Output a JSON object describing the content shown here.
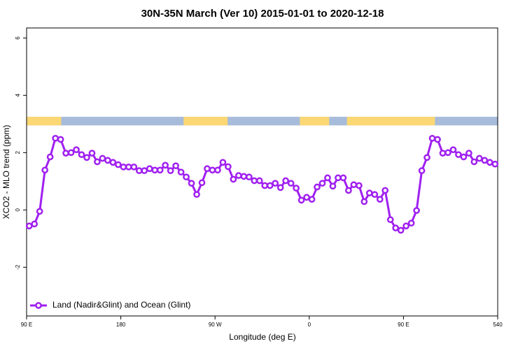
{
  "chart_data": {
    "type": "line",
    "title": "30N-35N March (Ver 10)   2015-01-01 to 2020-12-18",
    "x_label": "Longitude (deg E)",
    "y_label": "XCO2 - MLO trend (ppm)",
    "xlim": [
      90,
      540
    ],
    "ylim": [
      -3.7,
      6.35
    ],
    "xticks": [
      {
        "value": 90,
        "label": "90 E"
      },
      180,
      {
        "value": 270,
        "label": "90 W"
      },
      {
        "value": 360,
        "label": "0"
      },
      {
        "value": 450,
        "label": "90 E"
      },
      540
    ],
    "yticks": [
      -2,
      0,
      2,
      4,
      6
    ],
    "legend": "bottom-left",
    "land_mask": {
      "ylim": [
        2.95,
        3.25
      ],
      "land_color": "#fcd874",
      "ocean_color": "#a7bcda",
      "land": [
        [
          90,
          123
        ],
        [
          240,
          282
        ],
        [
          351,
          379
        ],
        [
          396,
          480
        ]
      ]
    },
    "x": [
      92.5,
      97.5,
      102.5,
      107.5,
      112.5,
      117.5,
      122.5,
      127.5,
      132.5,
      137.5,
      142.5,
      147.5,
      152.5,
      157.5,
      162.5,
      167.5,
      172.5,
      177.5,
      182.5,
      187.5,
      192.5,
      197.5,
      202.5,
      207.5,
      212.5,
      217.5,
      222.5,
      227.5,
      232.5,
      237.5,
      242.5,
      247.5,
      252.5,
      257.5,
      262.5,
      267.5,
      272.5,
      277.5,
      282.5,
      287.5,
      292.5,
      297.5,
      302.5,
      307.5,
      312.5,
      317.5,
      322.5,
      327.5,
      332.5,
      337.5,
      342.5,
      347.5,
      352.5,
      357.5,
      362.5,
      367.5,
      372.5,
      377.5,
      382.5,
      387.5,
      392.5,
      397.5,
      402.5,
      407.5,
      412.5,
      417.5,
      422.5,
      427.5,
      432.5,
      437.5,
      442.5,
      447.5,
      452.5,
      457.5,
      462.5,
      467.5,
      472.5,
      477.5,
      482.5,
      487.5,
      492.5,
      497.5,
      502.5,
      507.5,
      512.5,
      517.5,
      522.5,
      527.5,
      532.5,
      537.5
    ],
    "series": [
      {
        "name": "Land (Nadir&Glint) and Ocean (Glint)",
        "color": "#a020f0",
        "values": [
          -0.56,
          -0.49,
          -0.05,
          1.39,
          1.85,
          2.5,
          2.46,
          1.98,
          2.0,
          2.1,
          1.93,
          1.83,
          1.98,
          1.68,
          1.8,
          1.73,
          1.66,
          1.58,
          1.5,
          1.5,
          1.5,
          1.37,
          1.37,
          1.44,
          1.39,
          1.39,
          1.56,
          1.37,
          1.54,
          1.32,
          1.15,
          0.93,
          0.54,
          0.95,
          1.44,
          1.39,
          1.39,
          1.66,
          1.51,
          1.07,
          1.2,
          1.17,
          1.15,
          1.02,
          1.02,
          0.85,
          0.85,
          0.93,
          0.78,
          1.02,
          0.93,
          0.76,
          0.34,
          0.44,
          0.37,
          0.8,
          0.93,
          1.12,
          0.83,
          1.12,
          1.12,
          0.68,
          0.88,
          0.85,
          0.29,
          0.59,
          0.54,
          0.37,
          0.68,
          -0.34,
          -0.63,
          -0.71,
          -0.56,
          -0.46,
          -0.02,
          1.37,
          1.83,
          2.5,
          2.46,
          1.98,
          2.0,
          2.1,
          1.93,
          1.85,
          1.98,
          1.68,
          1.8,
          1.73,
          1.66,
          1.6
        ]
      }
    ]
  }
}
